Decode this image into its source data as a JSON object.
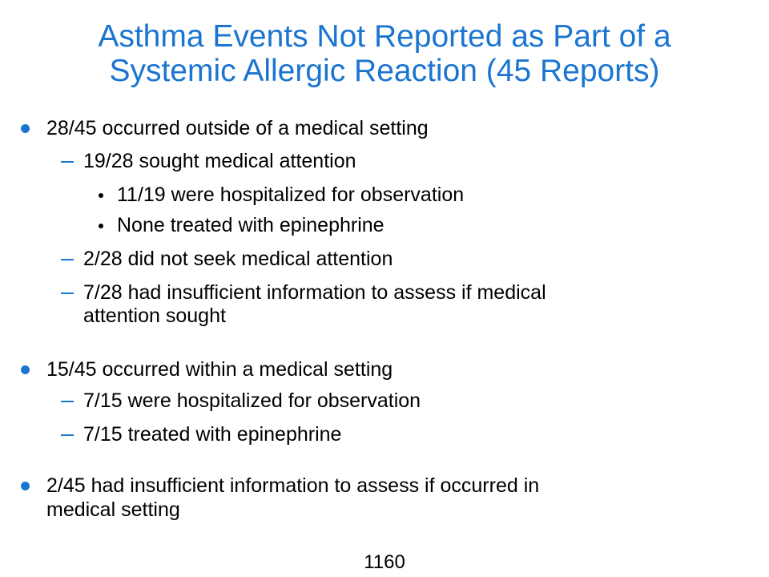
{
  "slide": {
    "title_lines": [
      "Asthma Events Not Reported as Part of a",
      "Systemic Allergic Reaction (45 Reports)"
    ],
    "bullets": [
      {
        "text": "28/45 occurred outside of a medical setting",
        "subitems": [
          {
            "text": "19/28 sought medical attention",
            "subitems": [
              "11/19 were hospitalized for observation",
              "None treated with epinephrine"
            ]
          },
          {
            "text": "2/28 did not seek medical attention"
          },
          {
            "text_lines": [
              "7/28 had insufficient information to assess if medical",
              "attention sought"
            ]
          }
        ]
      },
      {
        "text": "15/45 occurred within a medical setting",
        "subitems": [
          {
            "text": "7/15 were hospitalized for observation"
          },
          {
            "text": "7/15 treated with epinephrine"
          }
        ]
      },
      {
        "text_lines": [
          "2/45 had insufficient information to assess if occurred in",
          "medical setting"
        ]
      }
    ],
    "page_number": "1160"
  },
  "colors": {
    "title": "#1b75d0",
    "bullet": "#1b75d0",
    "body_text": "#000000"
  }
}
